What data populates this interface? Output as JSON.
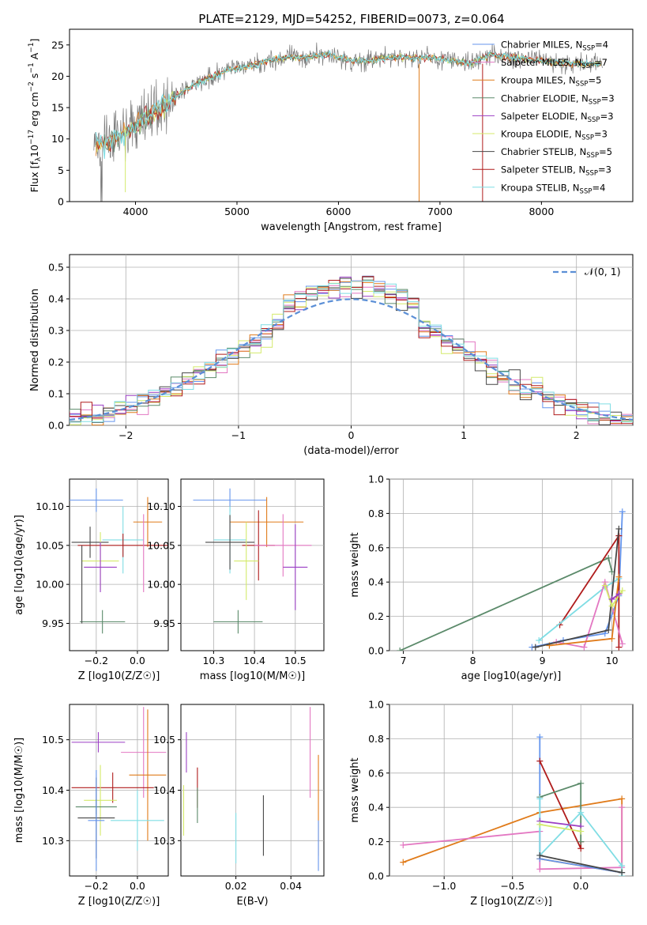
{
  "figure_title": "PLATE=2129, MJD=54252, FIBERID=0073, z=0.064",
  "colors": {
    "c1": "#6495ed",
    "c2": "#e377c2",
    "c3": "#e07b1a",
    "c4": "#5b8a6a",
    "c5": "#9b3fc4",
    "c6": "#d4ea6b",
    "c7": "#474747",
    "c8": "#b01c1c",
    "c9": "#7fdde4",
    "spec": "#7a7a7a",
    "grid": "#b0b0b0"
  },
  "chart_data": [
    {
      "type": "line",
      "title": "PLATE=2129, MJD=54252, FIBERID=0073, z=0.064",
      "xlabel": "wavelength [Angstrom, rest frame]",
      "ylabel": "Flux [f_λ 10^-17 erg cm^-2 s^-1 A^-1]",
      "xlim": [
        3350,
        8900
      ],
      "ylim": [
        0,
        27.5
      ],
      "xticks": [
        "4000",
        "5000",
        "6000",
        "7000",
        "8000"
      ],
      "yticks": [
        "0",
        "5",
        "10",
        "15",
        "20",
        "25"
      ],
      "grid": false,
      "legend_position": "right",
      "series": [
        {
          "name": "Chabrier MILES, N_SSP=4",
          "color_key": "c1"
        },
        {
          "name": "Salpeter MILES, N_SSP=7",
          "color_key": "c2"
        },
        {
          "name": "Kroupa MILES, N_SSP=5",
          "color_key": "c3"
        },
        {
          "name": "Chabrier ELODIE, N_SSP=3",
          "color_key": "c4"
        },
        {
          "name": "Salpeter ELODIE, N_SSP=3",
          "color_key": "c5"
        },
        {
          "name": "Kroupa ELODIE, N_SSP=3",
          "color_key": "c6"
        },
        {
          "name": "Chabrier STELIB, N_SSP=5",
          "color_key": "c7"
        },
        {
          "name": "Salpeter STELIB, N_SSP=3",
          "color_key": "c8"
        },
        {
          "name": "Kroupa STELIB, N_SSP=4",
          "color_key": "c9"
        }
      ],
      "continuum": [
        [
          3600,
          9
        ],
        [
          3800,
          10
        ],
        [
          3950,
          11.5
        ],
        [
          4100,
          13.5
        ],
        [
          4300,
          15.5
        ],
        [
          4500,
          18
        ],
        [
          4700,
          19.5
        ],
        [
          4900,
          21
        ],
        [
          5100,
          21.5
        ],
        [
          5300,
          22.5
        ],
        [
          5500,
          23
        ],
        [
          5700,
          23
        ],
        [
          5900,
          23.5
        ],
        [
          6100,
          22.5
        ],
        [
          6300,
          22.5
        ],
        [
          6500,
          23
        ],
        [
          6700,
          23
        ],
        [
          6900,
          23
        ],
        [
          7100,
          22.5
        ],
        [
          7300,
          22
        ],
        [
          7500,
          23.5
        ],
        [
          7700,
          23
        ],
        [
          8000,
          22.5
        ],
        [
          8300,
          22
        ],
        [
          8600,
          22
        ]
      ]
    },
    {
      "type": "step",
      "xlabel": "(data-model)/error",
      "ylabel": "Normed distribution",
      "xlim": [
        -2.5,
        2.5
      ],
      "ylim": [
        0,
        0.54
      ],
      "xticks": [
        "−2",
        "−1",
        "0",
        "1",
        "2"
      ],
      "yticks": [
        "0.0",
        "0.1",
        "0.2",
        "0.3",
        "0.4",
        "0.5"
      ],
      "grid": true,
      "legend": "𝒩(0, 1)",
      "legend_position": "top-right",
      "reference": "N(0,1) gaussian"
    },
    {
      "type": "scatter",
      "xlabel": "Z [log10(Z/Z☉)]",
      "ylabel": "age  [log10(age/yr)]",
      "xlim": [
        -0.33,
        0.15
      ],
      "ylim": [
        9.915,
        10.135
      ],
      "xticks": [
        [
          "−0.2",
          -0.2
        ],
        [
          "0.0",
          0.0
        ]
      ],
      "yticks": [
        [
          "9.95",
          9.95
        ],
        [
          "10.00",
          10.0
        ],
        [
          "10.05",
          10.05
        ],
        [
          "10.10",
          10.1
        ]
      ],
      "grid": true,
      "errorbars": [
        {
          "c": "c1",
          "x": -0.2,
          "xe": 0.13,
          "y": 10.108,
          "ye": 0.015
        },
        {
          "c": "c3",
          "x": 0.05,
          "xe": 0.07,
          "y": 10.08,
          "ye": 0.032
        },
        {
          "c": "c9",
          "x": -0.07,
          "xe": 0.1,
          "y": 10.057,
          "ye": 0.043
        },
        {
          "c": "c7",
          "x": -0.23,
          "xe": 0.09,
          "y": 10.054,
          "ye": 0.02
        },
        {
          "c": "c8",
          "x": -0.07,
          "xe": 0.22,
          "y": 10.05,
          "ye": 0.015
        },
        {
          "c": "c2",
          "x": 0.03,
          "xe": 0.0,
          "y": 10.04,
          "ye": 0.05
        },
        {
          "c": "c6",
          "x": -0.18,
          "xe": 0.09,
          "y": 10.03,
          "ye": 0.037
        },
        {
          "c": "c5",
          "x": -0.18,
          "xe": 0.08,
          "y": 10.022,
          "ye": 0.032
        },
        {
          "c": "c4",
          "x": -0.17,
          "xe": 0.11,
          "y": 9.952,
          "ye": 0.015
        },
        {
          "c": "c7",
          "x": -0.27,
          "xe": 0.0,
          "y": 10.0,
          "ye": 0.05
        }
      ]
    },
    {
      "type": "scatter",
      "xlabel": "mass [log10(M/M☉)]",
      "xlim": [
        10.22,
        10.57
      ],
      "ylim": [
        9.915,
        10.135
      ],
      "xticks": [
        [
          "10.3",
          10.3
        ],
        [
          "10.4",
          10.4
        ],
        [
          "10.5",
          10.5
        ]
      ],
      "yticks": [
        [
          "9.95",
          9.95
        ],
        [
          "10.00",
          10.0
        ],
        [
          "10.05",
          10.05
        ],
        [
          "10.10",
          10.1
        ]
      ],
      "grid": true,
      "errorbars": [
        {
          "c": "c1",
          "x": 10.34,
          "xe": 0.09,
          "y": 10.108,
          "ye": 0.015
        },
        {
          "c": "c3",
          "x": 10.43,
          "xe": 0.09,
          "y": 10.08,
          "ye": 0.032
        },
        {
          "c": "c9",
          "x": 10.34,
          "xe": 0.04,
          "y": 10.057,
          "ye": 0.043
        },
        {
          "c": "c7",
          "x": 10.34,
          "xe": 0.06,
          "y": 10.054,
          "ye": 0.035
        },
        {
          "c": "c8",
          "x": 10.41,
          "xe": 0.04,
          "y": 10.05,
          "ye": 0.045
        },
        {
          "c": "c2",
          "x": 10.47,
          "xe": 0.07,
          "y": 10.05,
          "ye": 0.04
        },
        {
          "c": "c6",
          "x": 10.38,
          "xe": 0.03,
          "y": 10.03,
          "ye": 0.05
        },
        {
          "c": "c5",
          "x": 10.5,
          "xe": 0.03,
          "y": 10.022,
          "ye": 0.055
        },
        {
          "c": "c4",
          "x": 10.36,
          "xe": 0.06,
          "y": 9.952,
          "ye": 0.015
        }
      ]
    },
    {
      "type": "line",
      "xlabel": "age  [log10(age/yr)]",
      "ylabel": "mass weight",
      "xlim": [
        6.8,
        10.3
      ],
      "ylim": [
        0,
        1.0
      ],
      "xticks": [
        [
          "7",
          7
        ],
        [
          "8",
          8
        ],
        [
          "9",
          9
        ],
        [
          "10",
          10
        ]
      ],
      "yticks": [
        [
          "0.0",
          0
        ],
        [
          "0.2",
          0.2
        ],
        [
          "0.4",
          0.4
        ],
        [
          "0.6",
          0.6
        ],
        [
          "0.8",
          0.8
        ],
        [
          "1.0",
          1.0
        ]
      ],
      "grid": true,
      "series": [
        {
          "c": "c4",
          "pts": [
            [
              6.95,
              0.0
            ],
            [
              9.95,
              0.54
            ],
            [
              10.0,
              0.46
            ]
          ]
        },
        {
          "c": "c1",
          "pts": [
            [
              8.85,
              0.02
            ],
            [
              9.3,
              0.06
            ],
            [
              9.9,
              0.1
            ],
            [
              10.1,
              0.32
            ],
            [
              10.15,
              0.81
            ]
          ]
        },
        {
          "c": "c8",
          "pts": [
            [
              9.25,
              0.15
            ],
            [
              10.1,
              0.67
            ],
            [
              10.1,
              0.02
            ]
          ]
        },
        {
          "c": "c9",
          "pts": [
            [
              8.95,
              0.06
            ],
            [
              9.9,
              0.37
            ],
            [
              10.1,
              0.42
            ]
          ]
        },
        {
          "c": "c2",
          "pts": [
            [
              9.2,
              0.05
            ],
            [
              9.6,
              0.02
            ],
            [
              9.9,
              0.4
            ],
            [
              10.15,
              0.04
            ]
          ]
        },
        {
          "c": "c3",
          "pts": [
            [
              9.1,
              0.03
            ],
            [
              10.0,
              0.07
            ],
            [
              10.1,
              0.43
            ]
          ]
        },
        {
          "c": "c7",
          "pts": [
            [
              8.9,
              0.02
            ],
            [
              9.95,
              0.12
            ],
            [
              10.1,
              0.71
            ]
          ]
        },
        {
          "c": "c6",
          "pts": [
            [
              9.9,
              0.38
            ],
            [
              10.0,
              0.26
            ],
            [
              10.15,
              0.35
            ]
          ]
        },
        {
          "c": "c5",
          "pts": [
            [
              10.0,
              0.3
            ],
            [
              10.1,
              0.33
            ]
          ]
        }
      ]
    },
    {
      "type": "scatter",
      "xlabel": "Z [log10(Z/Z☉)]",
      "ylabel": "mass [log10(M/M☉)]",
      "xlim": [
        -0.33,
        0.15
      ],
      "ylim": [
        10.23,
        10.57
      ],
      "xticks": [
        [
          "−0.2",
          -0.2
        ],
        [
          "0.0",
          0.0
        ]
      ],
      "yticks": [
        [
          "10.3",
          10.3
        ],
        [
          "10.4",
          10.4
        ],
        [
          "10.5",
          10.5
        ]
      ],
      "grid": true,
      "errorbars": [
        {
          "c": "c5",
          "x": -0.19,
          "xe": 0.13,
          "y": 10.495,
          "ye": 0.02
        },
        {
          "c": "c2",
          "x": 0.03,
          "xe": 0.11,
          "y": 10.475,
          "ye": 0.09
        },
        {
          "c": "c3",
          "x": 0.05,
          "xe": 0.09,
          "y": 10.43,
          "ye": 0.13
        },
        {
          "c": "c8",
          "x": -0.12,
          "xe": 0.2,
          "y": 10.405,
          "ye": 0.03
        },
        {
          "c": "c6",
          "x": -0.18,
          "xe": 0.08,
          "y": 10.38,
          "ye": 0.07
        },
        {
          "c": "c4",
          "x": -0.2,
          "xe": 0.1,
          "y": 10.367,
          "ye": 0.015
        },
        {
          "c": "c7",
          "x": -0.2,
          "xe": 0.09,
          "y": 10.345,
          "ye": 0.08
        },
        {
          "c": "c9",
          "x": 0.0,
          "xe": 0.13,
          "y": 10.34,
          "ye": 0.06
        },
        {
          "c": "c1",
          "x": -0.2,
          "xe": 0.04,
          "y": 10.34,
          "ye": 0.1
        }
      ]
    },
    {
      "type": "scatter",
      "xlabel": "E(B-V)",
      "xlim": [
        0.0,
        0.052
      ],
      "ylim": [
        10.23,
        10.57
      ],
      "xticks": [
        [
          "0.02",
          0.02
        ],
        [
          "0.04",
          0.04
        ]
      ],
      "yticks": [
        [
          "10.3",
          10.3
        ],
        [
          "10.4",
          10.4
        ],
        [
          "10.5",
          10.5
        ]
      ],
      "grid": true,
      "errorbars": [
        {
          "c": "c5",
          "x": 0.002,
          "xe": 0,
          "y": 10.475,
          "ye": 0.04
        },
        {
          "c": "c2",
          "x": 0.047,
          "xe": 0,
          "y": 10.475,
          "ye": 0.09
        },
        {
          "c": "c3",
          "x": 0.05,
          "xe": 0,
          "y": 10.37,
          "ye": 0.1
        },
        {
          "c": "c1",
          "x": 0.05,
          "xe": 0,
          "y": 10.29,
          "ye": 0.05
        },
        {
          "c": "c8",
          "x": 0.006,
          "xe": 0,
          "y": 10.405,
          "ye": 0.04
        },
        {
          "c": "c4",
          "x": 0.006,
          "xe": 0,
          "y": 10.37,
          "ye": 0.035
        },
        {
          "c": "c6",
          "x": 0.001,
          "xe": 0,
          "y": 10.36,
          "ye": 0.05
        },
        {
          "c": "c7",
          "x": 0.03,
          "xe": 0,
          "y": 10.33,
          "ye": 0.06
        },
        {
          "c": "c9",
          "x": 0.02,
          "xe": 0,
          "y": 10.305,
          "ye": 0.05
        }
      ]
    },
    {
      "type": "line",
      "xlabel": "Z [log10(Z/Z☉)]",
      "ylabel": "mass weight",
      "xlim": [
        -1.4,
        0.38
      ],
      "ylim": [
        0,
        1.0
      ],
      "xticks": [
        [
          "−1.0",
          -1.0
        ],
        [
          "−0.5",
          -0.5
        ],
        [
          "0.0",
          0.0
        ]
      ],
      "yticks": [
        [
          "0.0",
          0
        ],
        [
          "0.2",
          0.2
        ],
        [
          "0.4",
          0.4
        ],
        [
          "0.6",
          0.6
        ],
        [
          "0.8",
          0.8
        ],
        [
          "1.0",
          1.0
        ]
      ],
      "grid": true,
      "series": [
        {
          "c": "c3",
          "pts": [
            [
              -1.3,
              0.08
            ],
            [
              -0.3,
              0.37
            ],
            [
              0.3,
              0.45
            ],
            [
              0.3,
              0.02
            ],
            [
              -0.3,
              0.1
            ]
          ]
        },
        {
          "c": "c2",
          "pts": [
            [
              -1.3,
              0.18
            ],
            [
              -0.3,
              0.26
            ],
            [
              -0.3,
              0.04
            ],
            [
              0.3,
              0.05
            ],
            [
              0.3,
              0.4
            ]
          ]
        },
        {
          "c": "c1",
          "pts": [
            [
              -0.3,
              0.81
            ],
            [
              -0.3,
              0.1
            ],
            [
              0.3,
              0.02
            ]
          ]
        },
        {
          "c": "c8",
          "pts": [
            [
              -0.3,
              0.67
            ],
            [
              0.0,
              0.16
            ],
            [
              0.0,
              0.2
            ]
          ]
        },
        {
          "c": "c4",
          "pts": [
            [
              -0.3,
              0.46
            ],
            [
              0.0,
              0.54
            ],
            [
              0.0,
              0.2
            ]
          ]
        },
        {
          "c": "c9",
          "pts": [
            [
              -0.3,
              0.45
            ],
            [
              -0.3,
              0.12
            ],
            [
              0.0,
              0.37
            ],
            [
              0.3,
              0.06
            ],
            [
              0.3,
              0.0
            ]
          ]
        },
        {
          "c": "c7",
          "pts": [
            [
              -0.3,
              0.12
            ],
            [
              0.3,
              0.02
            ]
          ]
        },
        {
          "c": "c5",
          "pts": [
            [
              -0.3,
              0.32
            ],
            [
              0.0,
              0.29
            ]
          ]
        },
        {
          "c": "c6",
          "pts": [
            [
              -0.3,
              0.3
            ],
            [
              0.0,
              0.26
            ]
          ]
        }
      ]
    }
  ]
}
